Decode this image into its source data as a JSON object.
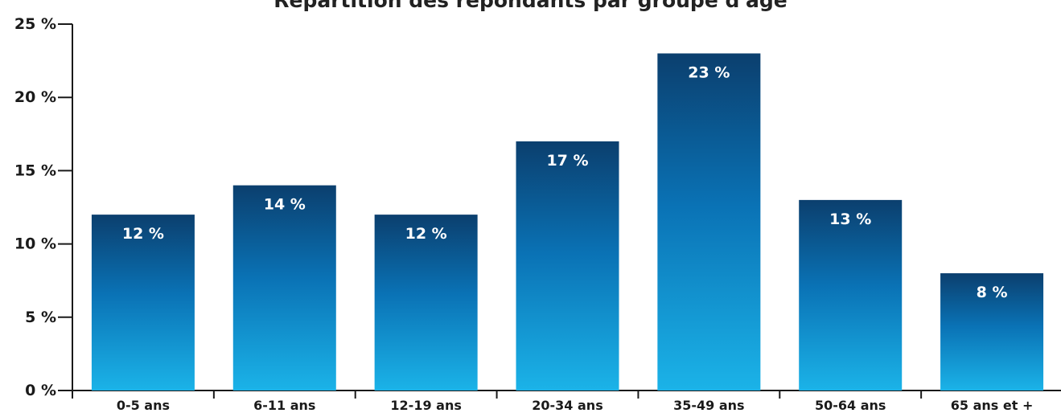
{
  "chart_data": {
    "type": "bar",
    "title": "Répartition des répondants par groupe d'âge",
    "categories": [
      "0-5 ans",
      "6-11 ans",
      "12-19 ans",
      "20-34 ans",
      "35-49 ans",
      "50-64 ans",
      "65 ans et +"
    ],
    "values": [
      12,
      14,
      12,
      17,
      23,
      13,
      8
    ],
    "value_labels": [
      "12 %",
      "14 %",
      "12 %",
      "17 %",
      "23 %",
      "13 %",
      "8 %"
    ],
    "ylim": [
      0,
      25
    ],
    "yticks": [
      0,
      5,
      10,
      15,
      20,
      25
    ],
    "ytick_labels": [
      "0 %",
      "5 %",
      "10 %",
      "15 %",
      "20 %",
      "25 %"
    ],
    "grid": false,
    "colors": {
      "bar_top": "#0b3f6e",
      "bar_mid": "#0a72b5",
      "bar_bottom": "#1bb3e8",
      "axis": "#1a1a1a"
    }
  }
}
